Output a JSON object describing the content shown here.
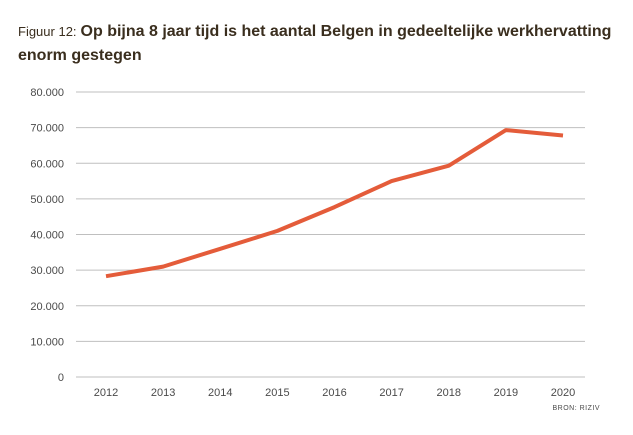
{
  "header": {
    "prefix": "Figuur 12:",
    "title": "Op bijna 8 jaar tijd is het aantal Belgen in gedeeltelijke werkhervatting enorm gestegen"
  },
  "source": "BRON: RIZIV",
  "chart_data": {
    "type": "line",
    "title": "Op bijna 8 jaar tijd is het aantal Belgen in gedeeltelijke werkhervatting enorm gestegen",
    "xlabel": "",
    "ylabel": "",
    "categories": [
      "2012",
      "2013",
      "2014",
      "2015",
      "2016",
      "2017",
      "2018",
      "2019",
      "2020"
    ],
    "series": [
      {
        "values": [
          28300,
          31000,
          36000,
          41000,
          47700,
          55000,
          59300,
          69300,
          67800
        ],
        "color": "#e45c3a"
      }
    ],
    "ylim": [
      0,
      80000
    ],
    "yticks": [
      0,
      10000,
      20000,
      30000,
      40000,
      50000,
      60000,
      70000,
      80000
    ],
    "ytick_labels": [
      "0",
      "10.000",
      "20.000",
      "30.000",
      "40.000",
      "50.000",
      "60.000",
      "70.000",
      "80.000"
    ],
    "grid": true,
    "gridline_color": "#bfbfbf",
    "legend": "none"
  }
}
